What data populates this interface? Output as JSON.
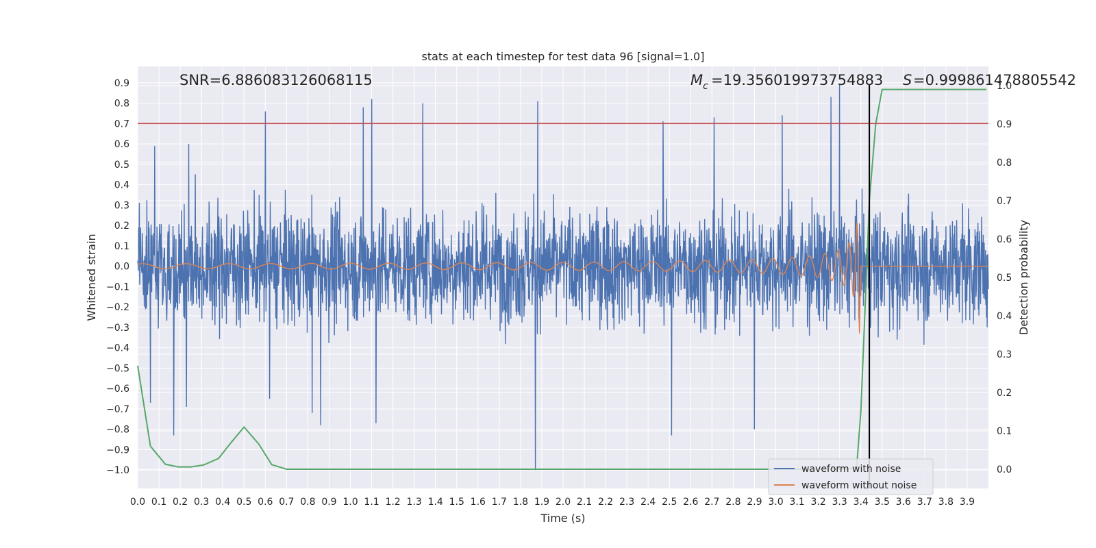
{
  "chart_data": {
    "type": "line",
    "title": "stats at each timestep for test data 96 [signal=1.0]",
    "xlabel": "Time (s)",
    "ylabel_left": "Whitened strain",
    "ylabel_right": "Detection probability",
    "xlim": [
      0.0,
      4.0
    ],
    "ylim_left": [
      -1.09,
      0.98
    ],
    "ylim_right": [
      -0.05,
      1.05
    ],
    "x_ticks": [
      "0.0",
      "0.1",
      "0.2",
      "0.3",
      "0.4",
      "0.5",
      "0.6",
      "0.7",
      "0.8",
      "0.9",
      "1.0",
      "1.1",
      "1.2",
      "1.3",
      "1.4",
      "1.5",
      "1.6",
      "1.7",
      "1.8",
      "1.9",
      "2.0",
      "2.1",
      "2.2",
      "2.3",
      "2.4",
      "2.5",
      "2.6",
      "2.7",
      "2.8",
      "2.9",
      "3.0",
      "3.1",
      "3.2",
      "3.3",
      "3.4",
      "3.5",
      "3.6",
      "3.7",
      "3.8",
      "3.9"
    ],
    "y_left_ticks": [
      "0.9",
      "0.8",
      "0.7",
      "0.6",
      "0.5",
      "0.4",
      "0.3",
      "0.2",
      "0.1",
      "0.0",
      "−0.1",
      "−0.2",
      "−0.3",
      "−0.4",
      "−0.5",
      "−0.6",
      "−0.7",
      "−0.8",
      "−0.9",
      "−1.0"
    ],
    "y_left_tick_values": [
      0.9,
      0.8,
      0.7,
      0.6,
      0.5,
      0.4,
      0.3,
      0.2,
      0.1,
      0.0,
      -0.1,
      -0.2,
      -0.3,
      -0.4,
      -0.5,
      -0.6,
      -0.7,
      -0.8,
      -0.9,
      -1.0
    ],
    "y_right_ticks": [
      "1.0",
      "0.9",
      "0.8",
      "0.7",
      "0.6",
      "0.5",
      "0.4",
      "0.3",
      "0.2",
      "0.1",
      "0.0"
    ],
    "y_right_tick_values": [
      1.0,
      0.9,
      0.8,
      0.7,
      0.6,
      0.5,
      0.4,
      0.3,
      0.2,
      0.1,
      0.0
    ],
    "grid": true,
    "legend_position": "lower-right",
    "annotations": {
      "snr": "SNR=6.886083126068115",
      "mc": "=19.356019973754883",
      "s": "=0.999861478805542"
    },
    "threshold_line": {
      "y": 0.7,
      "axis": "left",
      "color": "#c44e52"
    },
    "peak_marker": {
      "x": 3.44,
      "color": "#000000"
    },
    "series": [
      {
        "name": "waveform with noise",
        "color": "#4c72b0",
        "axis": "left",
        "noise_amplitude": 0.36,
        "notable_spikes": [
          {
            "x": 0.06,
            "y": -0.67
          },
          {
            "x": 0.08,
            "y": 0.59
          },
          {
            "x": 0.17,
            "y": -0.83
          },
          {
            "x": 0.23,
            "y": -0.69
          },
          {
            "x": 0.24,
            "y": 0.6
          },
          {
            "x": 0.6,
            "y": 0.76
          },
          {
            "x": 0.62,
            "y": -0.65
          },
          {
            "x": 0.82,
            "y": -0.72
          },
          {
            "x": 0.86,
            "y": -0.78
          },
          {
            "x": 1.06,
            "y": 0.78
          },
          {
            "x": 1.1,
            "y": 0.82
          },
          {
            "x": 1.12,
            "y": -0.77
          },
          {
            "x": 1.34,
            "y": 0.8
          },
          {
            "x": 1.87,
            "y": -1.0
          },
          {
            "x": 1.88,
            "y": 0.81
          },
          {
            "x": 2.47,
            "y": 0.71
          },
          {
            "x": 2.51,
            "y": -0.83
          },
          {
            "x": 2.71,
            "y": 0.73
          },
          {
            "x": 2.9,
            "y": -0.8
          },
          {
            "x": 3.03,
            "y": 0.74
          },
          {
            "x": 3.26,
            "y": 0.83
          },
          {
            "x": 3.3,
            "y": 0.89
          },
          {
            "x": 3.44,
            "y": -0.84
          }
        ]
      },
      {
        "name": "waveform without noise",
        "color": "#dd8452",
        "axis": "left",
        "merger_time": 3.4,
        "peak_amplitude": 0.33
      },
      {
        "name": "",
        "color": "#55a868",
        "axis": "right",
        "x": [
          0.0,
          0.06,
          0.13,
          0.19,
          0.25,
          0.31,
          0.38,
          0.44,
          0.5,
          0.57,
          0.63,
          0.7,
          0.8,
          1.0,
          1.5,
          2.0,
          2.5,
          3.0,
          3.3,
          3.38,
          3.4,
          3.42,
          3.44,
          3.47,
          3.5,
          3.6,
          3.7,
          3.8,
          3.9,
          3.99
        ],
        "y": [
          0.27,
          0.06,
          0.013,
          0.006,
          0.006,
          0.011,
          0.028,
          0.07,
          0.11,
          0.065,
          0.012,
          0.0,
          0.0,
          0.0,
          0.0,
          0.0,
          0.0,
          0.0,
          0.0,
          0.003,
          0.15,
          0.42,
          0.7,
          0.9,
          0.99,
          0.99,
          0.99,
          0.99,
          0.99,
          0.99
        ]
      }
    ]
  }
}
